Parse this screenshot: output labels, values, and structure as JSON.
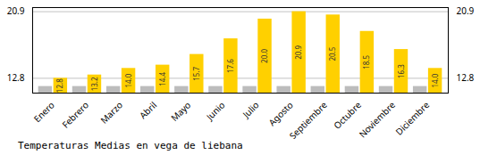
{
  "chart_data": {
    "type": "bar",
    "title": "Temperaturas Medias en vega de liebana",
    "categories": [
      "Enero",
      "Febrero",
      "Marzo",
      "Abril",
      "Mayo",
      "Junio",
      "Julio",
      "Agosto",
      "Septiembre",
      "Octubre",
      "Noviembre",
      "Diciembre"
    ],
    "series": [
      {
        "color": "#BCBCBC",
        "values": [
          11.8,
          11.8,
          11.8,
          11.8,
          11.8,
          11.8,
          11.8,
          11.8,
          11.8,
          11.8,
          11.8,
          11.8
        ]
      },
      {
        "color": "#FFD000",
        "values": [
          12.8,
          13.2,
          14.0,
          14.4,
          15.7,
          17.6,
          20.0,
          20.9,
          20.5,
          18.5,
          16.3,
          14.0
        ],
        "data_labels": true,
        "value_labels": [
          "12.8",
          "13.2",
          "14.0",
          "14.4",
          "15.7",
          "17.6",
          "20.0",
          "20.9",
          "20.5",
          "18.5",
          "16.3",
          "14.0"
        ]
      }
    ],
    "ylim": [
      11.0,
      21.4
    ],
    "yticks": [
      12.8,
      20.9
    ],
    "grid": true
  }
}
